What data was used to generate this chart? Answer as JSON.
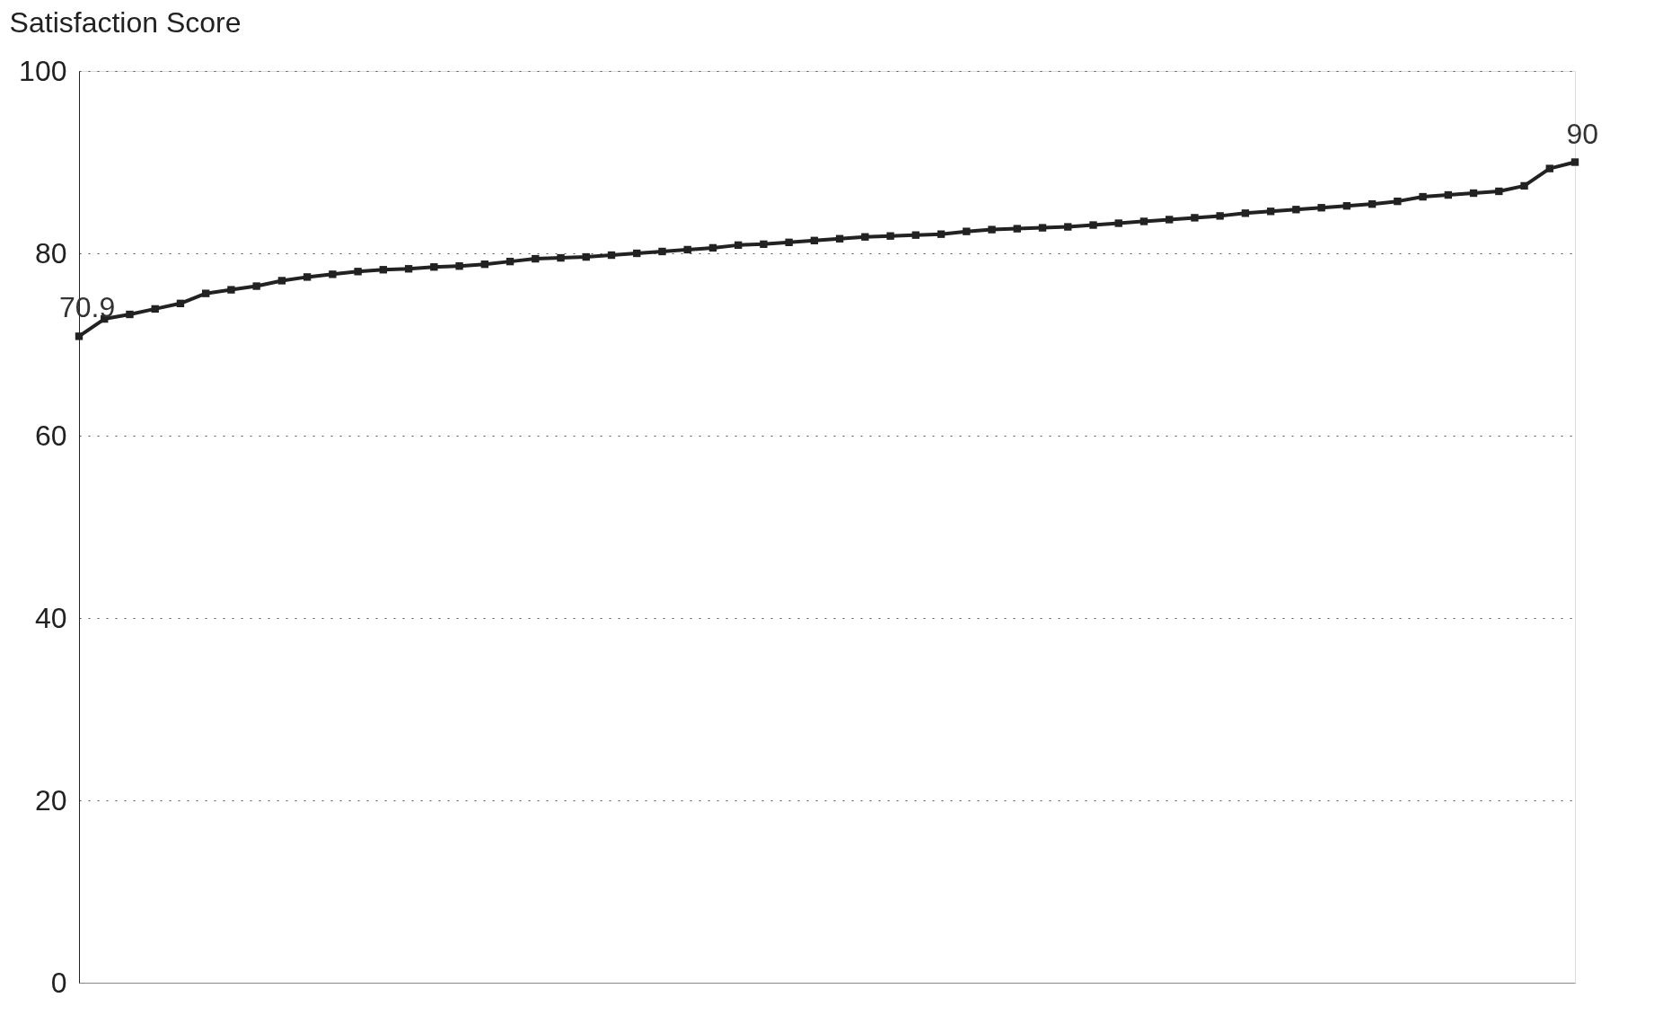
{
  "chart_data": {
    "type": "line",
    "title": "Satisfaction Score",
    "categories": [
      null,
      null,
      null,
      null,
      null,
      null,
      null,
      null,
      null,
      null,
      null,
      null,
      null,
      null,
      null,
      null,
      null,
      null,
      null,
      null,
      null,
      null,
      null,
      null,
      null,
      null,
      null,
      null,
      null,
      null,
      null,
      null,
      null,
      null,
      null,
      null,
      null,
      null,
      null,
      null,
      null,
      null,
      null,
      null,
      null,
      null,
      null,
      null,
      null,
      null,
      null,
      null,
      null,
      null,
      null,
      null,
      null,
      null,
      null,
      null
    ],
    "series": [
      {
        "color": "#222222",
        "values": [
          70.9,
          72.8,
          73.3,
          73.9,
          74.5,
          75.6,
          76.0,
          76.4,
          77.0,
          77.4,
          77.7,
          78.0,
          78.2,
          78.3,
          78.5,
          78.6,
          78.8,
          79.1,
          79.4,
          79.5,
          79.6,
          79.8,
          80.0,
          80.2,
          80.4,
          80.6,
          80.9,
          81.0,
          81.2,
          81.4,
          81.6,
          81.8,
          81.9,
          82.0,
          82.1,
          82.4,
          82.6,
          82.7,
          82.8,
          82.9,
          83.1,
          83.3,
          83.5,
          83.7,
          83.9,
          84.1,
          84.4,
          84.6,
          84.8,
          85.0,
          85.2,
          85.4,
          85.7,
          86.2,
          86.4,
          86.6,
          86.8,
          87.4,
          89.3,
          90
        ]
      }
    ],
    "ylim": [
      0,
      100
    ],
    "yticks": [
      0,
      20,
      40,
      60,
      80,
      100
    ],
    "grid": "y",
    "marker": "square",
    "line_style": "solid",
    "tick_labels": "y",
    "annotations": [
      {
        "text": "70.9",
        "y": 70.9
      },
      {
        "text": "90",
        "y": 90
      }
    ]
  }
}
